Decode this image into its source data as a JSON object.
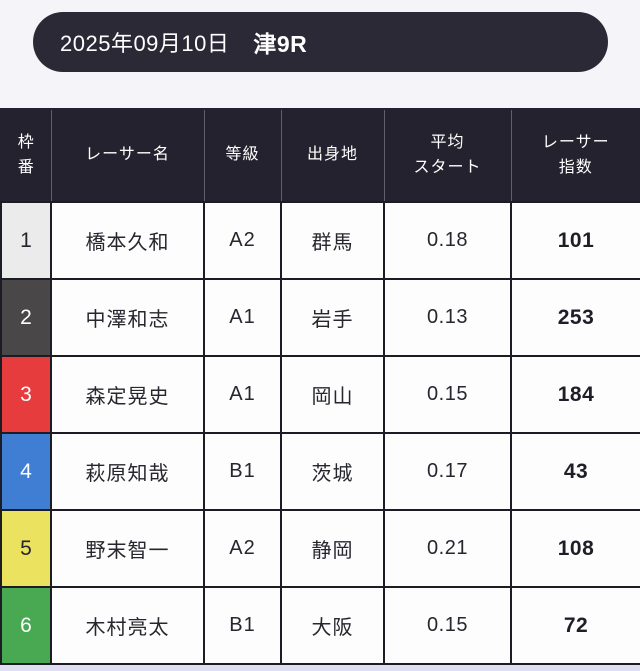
{
  "page": {
    "background": "#f5f4f8",
    "footer_strip_color": "#dfddf2"
  },
  "race_header": {
    "date": "2025年09月10日",
    "race": "津9R",
    "background": "#2b2935",
    "text_color": "#ffffff"
  },
  "table": {
    "header_bg": "#24222e",
    "grid_border_color": "#1c1c24",
    "columns": [
      {
        "key": "waku",
        "label": "枠\n番"
      },
      {
        "key": "name",
        "label": "レーサー名"
      },
      {
        "key": "grade",
        "label": "等級"
      },
      {
        "key": "origin",
        "label": "出身地"
      },
      {
        "key": "avg_start",
        "label": "平均\nスタート"
      },
      {
        "key": "index",
        "label": "レーサー\n指数"
      }
    ],
    "rows": [
      {
        "waku": "1",
        "name": "橋本久和",
        "grade": "A2",
        "origin": "群馬",
        "avg_start": "0.18",
        "index": "101",
        "frame_bg": "#ebebeb",
        "frame_color": "#25242e"
      },
      {
        "waku": "2",
        "name": "中澤和志",
        "grade": "A1",
        "origin": "岩手",
        "avg_start": "0.13",
        "index": "253",
        "frame_bg": "#494747",
        "frame_color": "#ffffff"
      },
      {
        "waku": "3",
        "name": "森定晃史",
        "grade": "A1",
        "origin": "岡山",
        "avg_start": "0.15",
        "index": "184",
        "frame_bg": "#e63c3e",
        "frame_color": "#ffffff"
      },
      {
        "waku": "4",
        "name": "萩原知哉",
        "grade": "B1",
        "origin": "茨城",
        "avg_start": "0.17",
        "index": "43",
        "frame_bg": "#3f7ed3",
        "frame_color": "#ffffff"
      },
      {
        "waku": "5",
        "name": "野末智一",
        "grade": "A2",
        "origin": "静岡",
        "avg_start": "0.21",
        "index": "108",
        "frame_bg": "#ebe35f",
        "frame_color": "#25242e"
      },
      {
        "waku": "6",
        "name": "木村亮太",
        "grade": "B1",
        "origin": "大阪",
        "avg_start": "0.15",
        "index": "72",
        "frame_bg": "#49a953",
        "frame_color": "#ffffff"
      }
    ]
  }
}
